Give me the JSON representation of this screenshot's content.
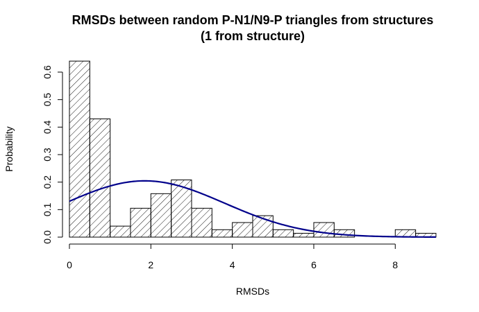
{
  "chart_data": {
    "type": "bar",
    "title_line1": "RMSDs between random P-N1/N9-P triangles from structures",
    "title_line2": "(1 from structure)",
    "xlabel": "RMSDs",
    "ylabel": "Probability",
    "xlim": [
      0,
      9
    ],
    "ylim": [
      0,
      0.6
    ],
    "x_ticks": [
      "0",
      "2",
      "4",
      "6",
      "8"
    ],
    "y_ticks": [
      "0.0",
      "0.1",
      "0.2",
      "0.3",
      "0.4",
      "0.5",
      "0.6"
    ],
    "bin_width": 0.5,
    "bins": [
      {
        "start": 0.0,
        "value": 0.64
      },
      {
        "start": 0.5,
        "value": 0.43
      },
      {
        "start": 1.0,
        "value": 0.04
      },
      {
        "start": 1.5,
        "value": 0.105
      },
      {
        "start": 2.0,
        "value": 0.158
      },
      {
        "start": 2.5,
        "value": 0.208
      },
      {
        "start": 3.0,
        "value": 0.105
      },
      {
        "start": 3.5,
        "value": 0.027
      },
      {
        "start": 4.0,
        "value": 0.053
      },
      {
        "start": 4.5,
        "value": 0.078
      },
      {
        "start": 5.0,
        "value": 0.027
      },
      {
        "start": 5.5,
        "value": 0.014
      },
      {
        "start": 6.0,
        "value": 0.053
      },
      {
        "start": 6.5,
        "value": 0.027
      },
      {
        "start": 7.0,
        "value": 0.0
      },
      {
        "start": 7.5,
        "value": 0.0
      },
      {
        "start": 8.0,
        "value": 0.027
      },
      {
        "start": 8.5,
        "value": 0.014
      }
    ],
    "curve": {
      "type": "normal-density",
      "mean": 1.85,
      "sd": 1.95,
      "color": "#00008B",
      "x_range": [
        0,
        9
      ]
    },
    "bar_fill": "hatched",
    "bar_stroke": "#000000"
  }
}
